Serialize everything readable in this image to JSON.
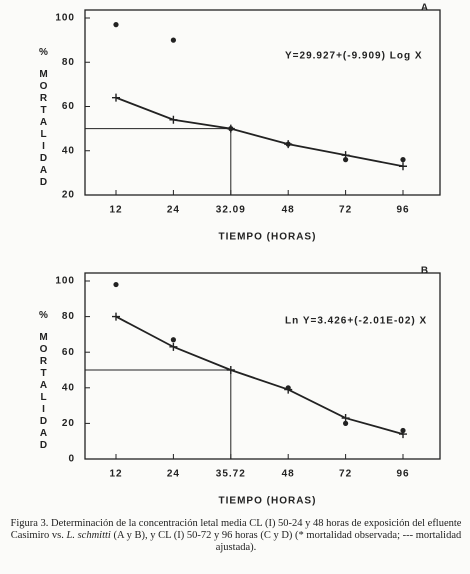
{
  "chart_data": [
    {
      "type": "line",
      "panel": "A",
      "equation": "Y=29.927+(-9.909) Log X",
      "y_label": "% MORTALIDAD",
      "x_label": "TIEMPO (HORAS)",
      "categories": [
        "12",
        "24",
        "32.09",
        "48",
        "72",
        "96"
      ],
      "series": [
        {
          "values": [
            97,
            90,
            50,
            43,
            36,
            36
          ],
          "color": "#222",
          "marker": "dot"
        },
        {
          "values": [
            64,
            54,
            50,
            43,
            38,
            33
          ],
          "color": "#222",
          "marker": "cross",
          "line": true
        }
      ],
      "reference_y": 50,
      "ylim": [
        20,
        100
      ],
      "yticks": [
        20,
        40,
        60,
        80,
        100
      ]
    },
    {
      "type": "line",
      "panel": "B",
      "equation": "Ln Y=3.426+(-2.01E-02) X",
      "y_label": "% MORTALIDAD",
      "x_label": "TIEMPO (HORAS)",
      "categories": [
        "12",
        "24",
        "35.72",
        "48",
        "72",
        "96"
      ],
      "series": [
        {
          "values": [
            98,
            67,
            null,
            40,
            20,
            16
          ],
          "color": "#222",
          "marker": "dot"
        },
        {
          "values": [
            80,
            63,
            50,
            39,
            23,
            14
          ],
          "color": "#222",
          "marker": "cross",
          "line": true
        }
      ],
      "reference_y": 50,
      "ylim": [
        0,
        100
      ],
      "yticks": [
        0,
        20,
        40,
        60,
        80,
        100
      ]
    }
  ],
  "caption": [
    "Figura 3. Determinación de la concentración letal media CL (I) 50-24 y 48 horas de exposición del efluente Casimiro vs. ",
    "L. schmitti",
    " (A y B), y CL (I) 50-72 y 96 horas (C y D) (* mortalidad observada; --- mortalidad ajustada)."
  ]
}
